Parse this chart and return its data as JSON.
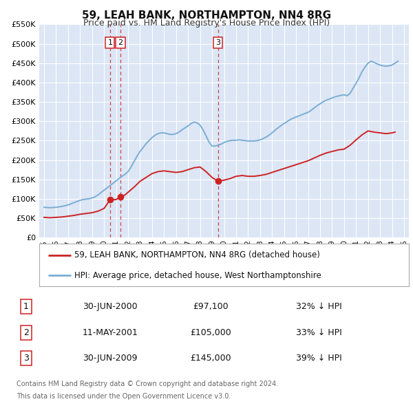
{
  "title": "59, LEAH BANK, NORTHAMPTON, NN4 8RG",
  "subtitle": "Price paid vs. HM Land Registry's House Price Index (HPI)",
  "background_color": "#ffffff",
  "plot_bg_color": "#dce6f5",
  "grid_color": "#ffffff",
  "ylim": [
    0,
    550000
  ],
  "yticks": [
    0,
    50000,
    100000,
    150000,
    200000,
    250000,
    300000,
    350000,
    400000,
    450000,
    500000,
    550000
  ],
  "hpi_color": "#7aadd4",
  "price_color": "#cc2222",
  "marker_color": "#cc2222",
  "vline_color": "#cc3333",
  "legend_label_price": "59, LEAH BANK, NORTHAMPTON, NN4 8RG (detached house)",
  "legend_label_hpi": "HPI: Average price, detached house, West Northamptonshire",
  "transactions": [
    {
      "num": 1,
      "date_num": 2000.5,
      "price": 97100,
      "label": "30-JUN-2000",
      "pct": "32% ↓ HPI"
    },
    {
      "num": 2,
      "date_num": 2001.37,
      "price": 105000,
      "label": "11-MAY-2001",
      "pct": "33% ↓ HPI"
    },
    {
      "num": 3,
      "date_num": 2009.5,
      "price": 145000,
      "label": "30-JUN-2009",
      "pct": "39% ↓ HPI"
    }
  ],
  "footer_line1": "Contains HM Land Registry data © Crown copyright and database right 2024.",
  "footer_line2": "This data is licensed under the Open Government Licence v3.0.",
  "hpi_data": {
    "years": [
      1995.0,
      1995.25,
      1995.5,
      1995.75,
      1996.0,
      1996.25,
      1996.5,
      1996.75,
      1997.0,
      1997.25,
      1997.5,
      1997.75,
      1998.0,
      1998.25,
      1998.5,
      1998.75,
      1999.0,
      1999.25,
      1999.5,
      1999.75,
      2000.0,
      2000.25,
      2000.5,
      2000.75,
      2001.0,
      2001.25,
      2001.5,
      2001.75,
      2002.0,
      2002.25,
      2002.5,
      2002.75,
      2003.0,
      2003.25,
      2003.5,
      2003.75,
      2004.0,
      2004.25,
      2004.5,
      2004.75,
      2005.0,
      2005.25,
      2005.5,
      2005.75,
      2006.0,
      2006.25,
      2006.5,
      2006.75,
      2007.0,
      2007.25,
      2007.5,
      2007.75,
      2008.0,
      2008.25,
      2008.5,
      2008.75,
      2009.0,
      2009.25,
      2009.5,
      2009.75,
      2010.0,
      2010.25,
      2010.5,
      2010.75,
      2011.0,
      2011.25,
      2011.5,
      2011.75,
      2012.0,
      2012.25,
      2012.5,
      2012.75,
      2013.0,
      2013.25,
      2013.5,
      2013.75,
      2014.0,
      2014.25,
      2014.5,
      2014.75,
      2015.0,
      2015.25,
      2015.5,
      2015.75,
      2016.0,
      2016.25,
      2016.5,
      2016.75,
      2017.0,
      2017.25,
      2017.5,
      2017.75,
      2018.0,
      2018.25,
      2018.5,
      2018.75,
      2019.0,
      2019.25,
      2019.5,
      2019.75,
      2020.0,
      2020.25,
      2020.5,
      2020.75,
      2021.0,
      2021.25,
      2021.5,
      2021.75,
      2022.0,
      2022.25,
      2022.5,
      2022.75,
      2023.0,
      2023.25,
      2023.5,
      2023.75,
      2024.0,
      2024.25,
      2024.5
    ],
    "values": [
      78000,
      77500,
      77000,
      77500,
      78000,
      79000,
      80500,
      82000,
      84000,
      87000,
      90000,
      93000,
      96000,
      98000,
      99000,
      100000,
      102000,
      105000,
      110000,
      116000,
      122000,
      128000,
      134000,
      140000,
      146000,
      152000,
      158000,
      163000,
      170000,
      182000,
      196000,
      210000,
      222000,
      232000,
      242000,
      250000,
      258000,
      264000,
      268000,
      270000,
      270000,
      268000,
      266000,
      266000,
      268000,
      272000,
      278000,
      283000,
      288000,
      294000,
      298000,
      296000,
      290000,
      278000,
      262000,
      246000,
      236000,
      236000,
      238000,
      241000,
      245000,
      248000,
      250000,
      251000,
      251000,
      252000,
      251000,
      250000,
      249000,
      249000,
      249000,
      250000,
      252000,
      255000,
      259000,
      264000,
      270000,
      277000,
      283000,
      289000,
      294000,
      299000,
      304000,
      308000,
      311000,
      314000,
      317000,
      320000,
      323000,
      328000,
      334000,
      340000,
      345000,
      350000,
      354000,
      357000,
      360000,
      363000,
      365000,
      367000,
      368000,
      366000,
      372000,
      385000,
      398000,
      412000,
      428000,
      440000,
      450000,
      455000,
      452000,
      448000,
      445000,
      443000,
      442000,
      443000,
      445000,
      450000,
      455000
    ]
  },
  "price_data": {
    "years": [
      1995.0,
      1995.5,
      1996.0,
      1996.5,
      1997.0,
      1997.5,
      1998.0,
      1998.5,
      1999.0,
      1999.5,
      2000.0,
      2000.5,
      2001.0,
      2001.37,
      2001.75,
      2002.5,
      2003.0,
      2003.5,
      2004.0,
      2004.5,
      2005.0,
      2005.5,
      2006.0,
      2006.5,
      2007.0,
      2007.5,
      2008.0,
      2008.5,
      2009.0,
      2009.5,
      2010.0,
      2010.5,
      2011.0,
      2011.5,
      2012.0,
      2012.5,
      2013.0,
      2013.5,
      2014.0,
      2014.5,
      2015.0,
      2015.5,
      2016.0,
      2016.5,
      2017.0,
      2017.5,
      2018.0,
      2018.5,
      2019.0,
      2019.5,
      2020.0,
      2020.5,
      2021.0,
      2021.5,
      2022.0,
      2022.5,
      2023.0,
      2023.5,
      2024.0,
      2024.25
    ],
    "values": [
      52000,
      51000,
      52000,
      53000,
      55000,
      57000,
      60000,
      62000,
      64000,
      68000,
      75000,
      97100,
      98000,
      105000,
      110000,
      130000,
      145000,
      155000,
      165000,
      170000,
      172000,
      170000,
      168000,
      170000,
      175000,
      180000,
      182000,
      170000,
      155000,
      145000,
      148000,
      152000,
      158000,
      160000,
      158000,
      158000,
      160000,
      163000,
      168000,
      173000,
      178000,
      183000,
      188000,
      193000,
      198000,
      205000,
      212000,
      218000,
      222000,
      226000,
      228000,
      238000,
      252000,
      265000,
      275000,
      272000,
      270000,
      268000,
      270000,
      272000
    ]
  }
}
